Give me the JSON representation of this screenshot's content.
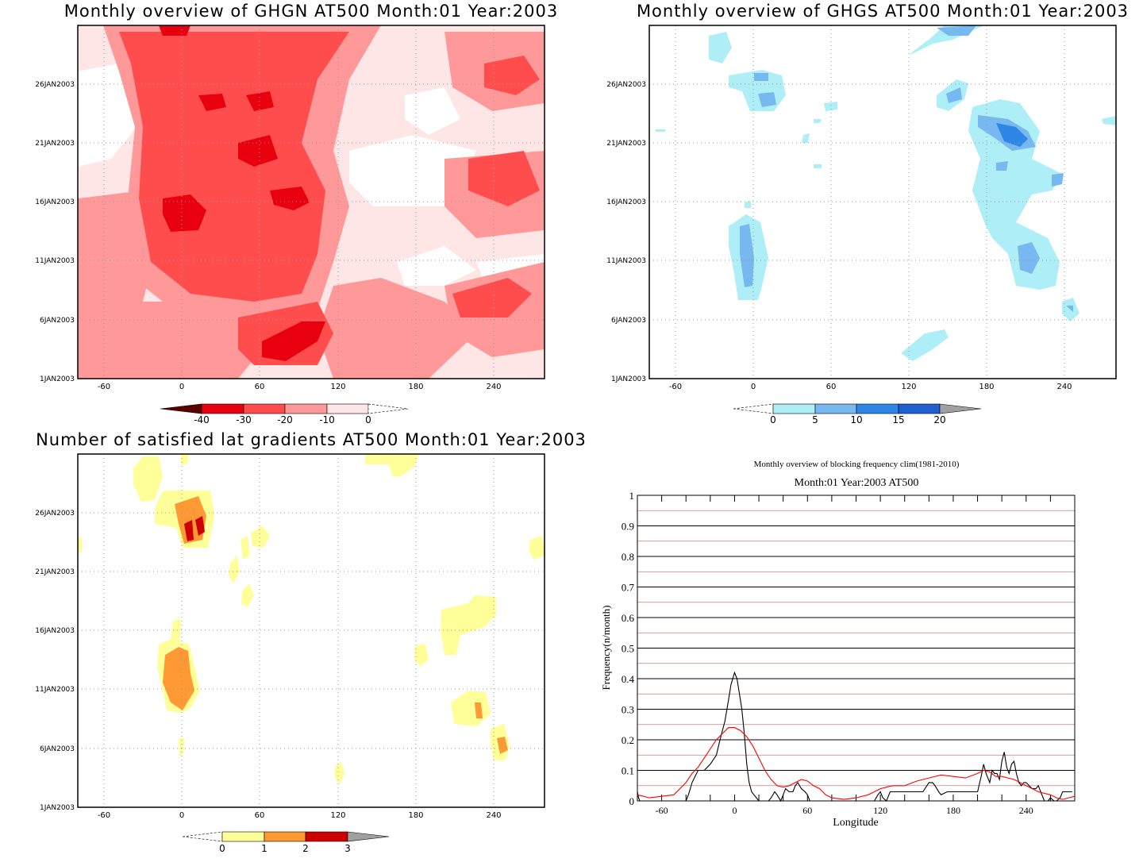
{
  "panels": {
    "ghgn": {
      "title": "Monthly overview of GHGN AT500 Month:01 Year:2003",
      "x_ticks": [
        "-60",
        "0",
        "60",
        "120",
        "180",
        "240"
      ],
      "y_ticks": [
        "1JAN2003",
        "6JAN2003",
        "11JAN2003",
        "16JAN2003",
        "21JAN2003",
        "26JAN2003"
      ],
      "colorbar": {
        "labels": [
          "-40",
          "-30",
          "-20",
          "-10",
          "0"
        ],
        "colors": [
          "#5a0000",
          "#e8000f",
          "#ff4d4d",
          "#ff9999",
          "#ffe6e6"
        ]
      }
    },
    "ghgs": {
      "title": "Monthly overview of GHGS AT500 Month:01 Year:2003",
      "x_ticks": [
        "-60",
        "0",
        "60",
        "120",
        "180",
        "240"
      ],
      "y_ticks": [
        "1JAN2003",
        "6JAN2003",
        "11JAN2003",
        "16JAN2003",
        "21JAN2003",
        "26JAN2003"
      ],
      "colorbar": {
        "labels": [
          "0",
          "5",
          "10",
          "15",
          "20"
        ],
        "colors": [
          "#aeeef6",
          "#78b8f0",
          "#2e86e6",
          "#1f5fd0",
          "#a0a0a0"
        ]
      }
    },
    "lat": {
      "title": "Number of satisfied lat gradients AT500 Month:01 Year:2003",
      "x_ticks": [
        "-60",
        "0",
        "60",
        "120",
        "180",
        "240"
      ],
      "y_ticks": [
        "1JAN2003",
        "6JAN2003",
        "11JAN2003",
        "16JAN2003",
        "21JAN2003",
        "26JAN2003"
      ],
      "colorbar": {
        "labels": [
          "0",
          "1",
          "2",
          "3"
        ],
        "colors": [
          "#ffff99",
          "#ff9933",
          "#cc0000",
          "#a0a0a0"
        ]
      }
    }
  },
  "chart_data": {
    "type": "line",
    "title": "Monthly overview of blocking frequency clim(1981-2010)",
    "subtitle": "Month:01 Year:2003  AT500",
    "xlabel": "Longitude",
    "ylabel": "Frequency(n/month)",
    "xlim": [
      -80,
      280
    ],
    "ylim": [
      0,
      1
    ],
    "x_ticks": [
      "-60",
      "0",
      "60",
      "120",
      "180",
      "240"
    ],
    "y_ticks": [
      "0",
      "0.1",
      "0.2",
      "0.3",
      "0.4",
      "0.5",
      "0.6",
      "0.7",
      "0.8",
      "0.9",
      "1"
    ],
    "grid": true,
    "series": [
      {
        "color": "#000000",
        "x": [
          -80,
          -79,
          -78,
          -40,
          -38,
          -35,
          -30,
          -25,
          -20,
          -15,
          -12,
          -10,
          -8,
          -5,
          -3,
          0,
          2,
          4,
          6,
          8,
          10,
          12,
          14,
          16,
          18,
          20,
          22,
          25,
          28,
          30,
          33,
          35,
          38,
          40,
          42,
          45,
          48,
          50,
          52,
          55,
          58,
          60,
          62,
          65,
          68,
          70,
          75,
          80,
          100,
          115,
          118,
          120,
          122,
          125,
          128,
          130,
          135,
          140,
          150,
          155,
          160,
          163,
          165,
          168,
          170,
          175,
          180,
          200,
          203,
          205,
          207,
          210,
          212,
          214,
          216,
          218,
          220,
          222,
          224,
          226,
          228,
          230,
          232,
          234,
          236,
          238,
          240,
          245,
          248,
          250,
          252,
          255,
          258,
          260,
          263,
          265,
          268,
          270,
          272,
          275,
          278
        ],
        "y": [
          0.03,
          0.01,
          0,
          0,
          0.02,
          0.06,
          0.1,
          0.1,
          0.12,
          0.15,
          0.2,
          0.23,
          0.26,
          0.33,
          0.38,
          0.42,
          0.4,
          0.35,
          0.3,
          0.22,
          0.12,
          0.06,
          0.03,
          0.02,
          0.01,
          0,
          0,
          0,
          0,
          0.01,
          0.03,
          0.02,
          0,
          0.02,
          0.04,
          0.03,
          0.03,
          0.05,
          0.06,
          0.04,
          0.03,
          0.02,
          0,
          0,
          0,
          0,
          0,
          0,
          0,
          0,
          0.02,
          0.03,
          0.01,
          0,
          0.03,
          0.03,
          0.03,
          0.03,
          0.03,
          0.03,
          0.06,
          0.06,
          0.05,
          0.03,
          0.02,
          0.03,
          0.03,
          0.03,
          0.08,
          0.12,
          0.09,
          0.06,
          0.1,
          0.09,
          0.09,
          0.07,
          0.13,
          0.16,
          0.11,
          0.09,
          0.12,
          0.13,
          0.09,
          0.06,
          0.05,
          0.06,
          0.06,
          0.04,
          0.04,
          0.05,
          0.03,
          0,
          0,
          0.01,
          0,
          0,
          0.01,
          0.03,
          0.03,
          0.03,
          0.03
        ]
      },
      {
        "color": "#ff0000",
        "x": [
          -80,
          -70,
          -60,
          -50,
          -45,
          -40,
          -35,
          -30,
          -25,
          -20,
          -15,
          -10,
          -5,
          0,
          5,
          10,
          15,
          20,
          25,
          30,
          35,
          40,
          45,
          50,
          55,
          60,
          65,
          70,
          75,
          80,
          90,
          100,
          110,
          115,
          120,
          125,
          130,
          140,
          150,
          160,
          170,
          180,
          190,
          200,
          205,
          210,
          215,
          220,
          225,
          230,
          240,
          250,
          260,
          265,
          270,
          275,
          280
        ],
        "y": [
          0.02,
          0.01,
          0.015,
          0.02,
          0.04,
          0.06,
          0.09,
          0.11,
          0.14,
          0.17,
          0.2,
          0.22,
          0.24,
          0.24,
          0.23,
          0.21,
          0.18,
          0.14,
          0.1,
          0.07,
          0.05,
          0.045,
          0.05,
          0.06,
          0.07,
          0.065,
          0.05,
          0.04,
          0.02,
          0.01,
          0.005,
          0.01,
          0.02,
          0.03,
          0.04,
          0.045,
          0.05,
          0.05,
          0.065,
          0.075,
          0.085,
          0.08,
          0.075,
          0.09,
          0.1,
          0.095,
          0.08,
          0.08,
          0.075,
          0.07,
          0.05,
          0.03,
          0.02,
          0.01,
          0.005,
          0.01,
          0.015
        ]
      }
    ]
  }
}
